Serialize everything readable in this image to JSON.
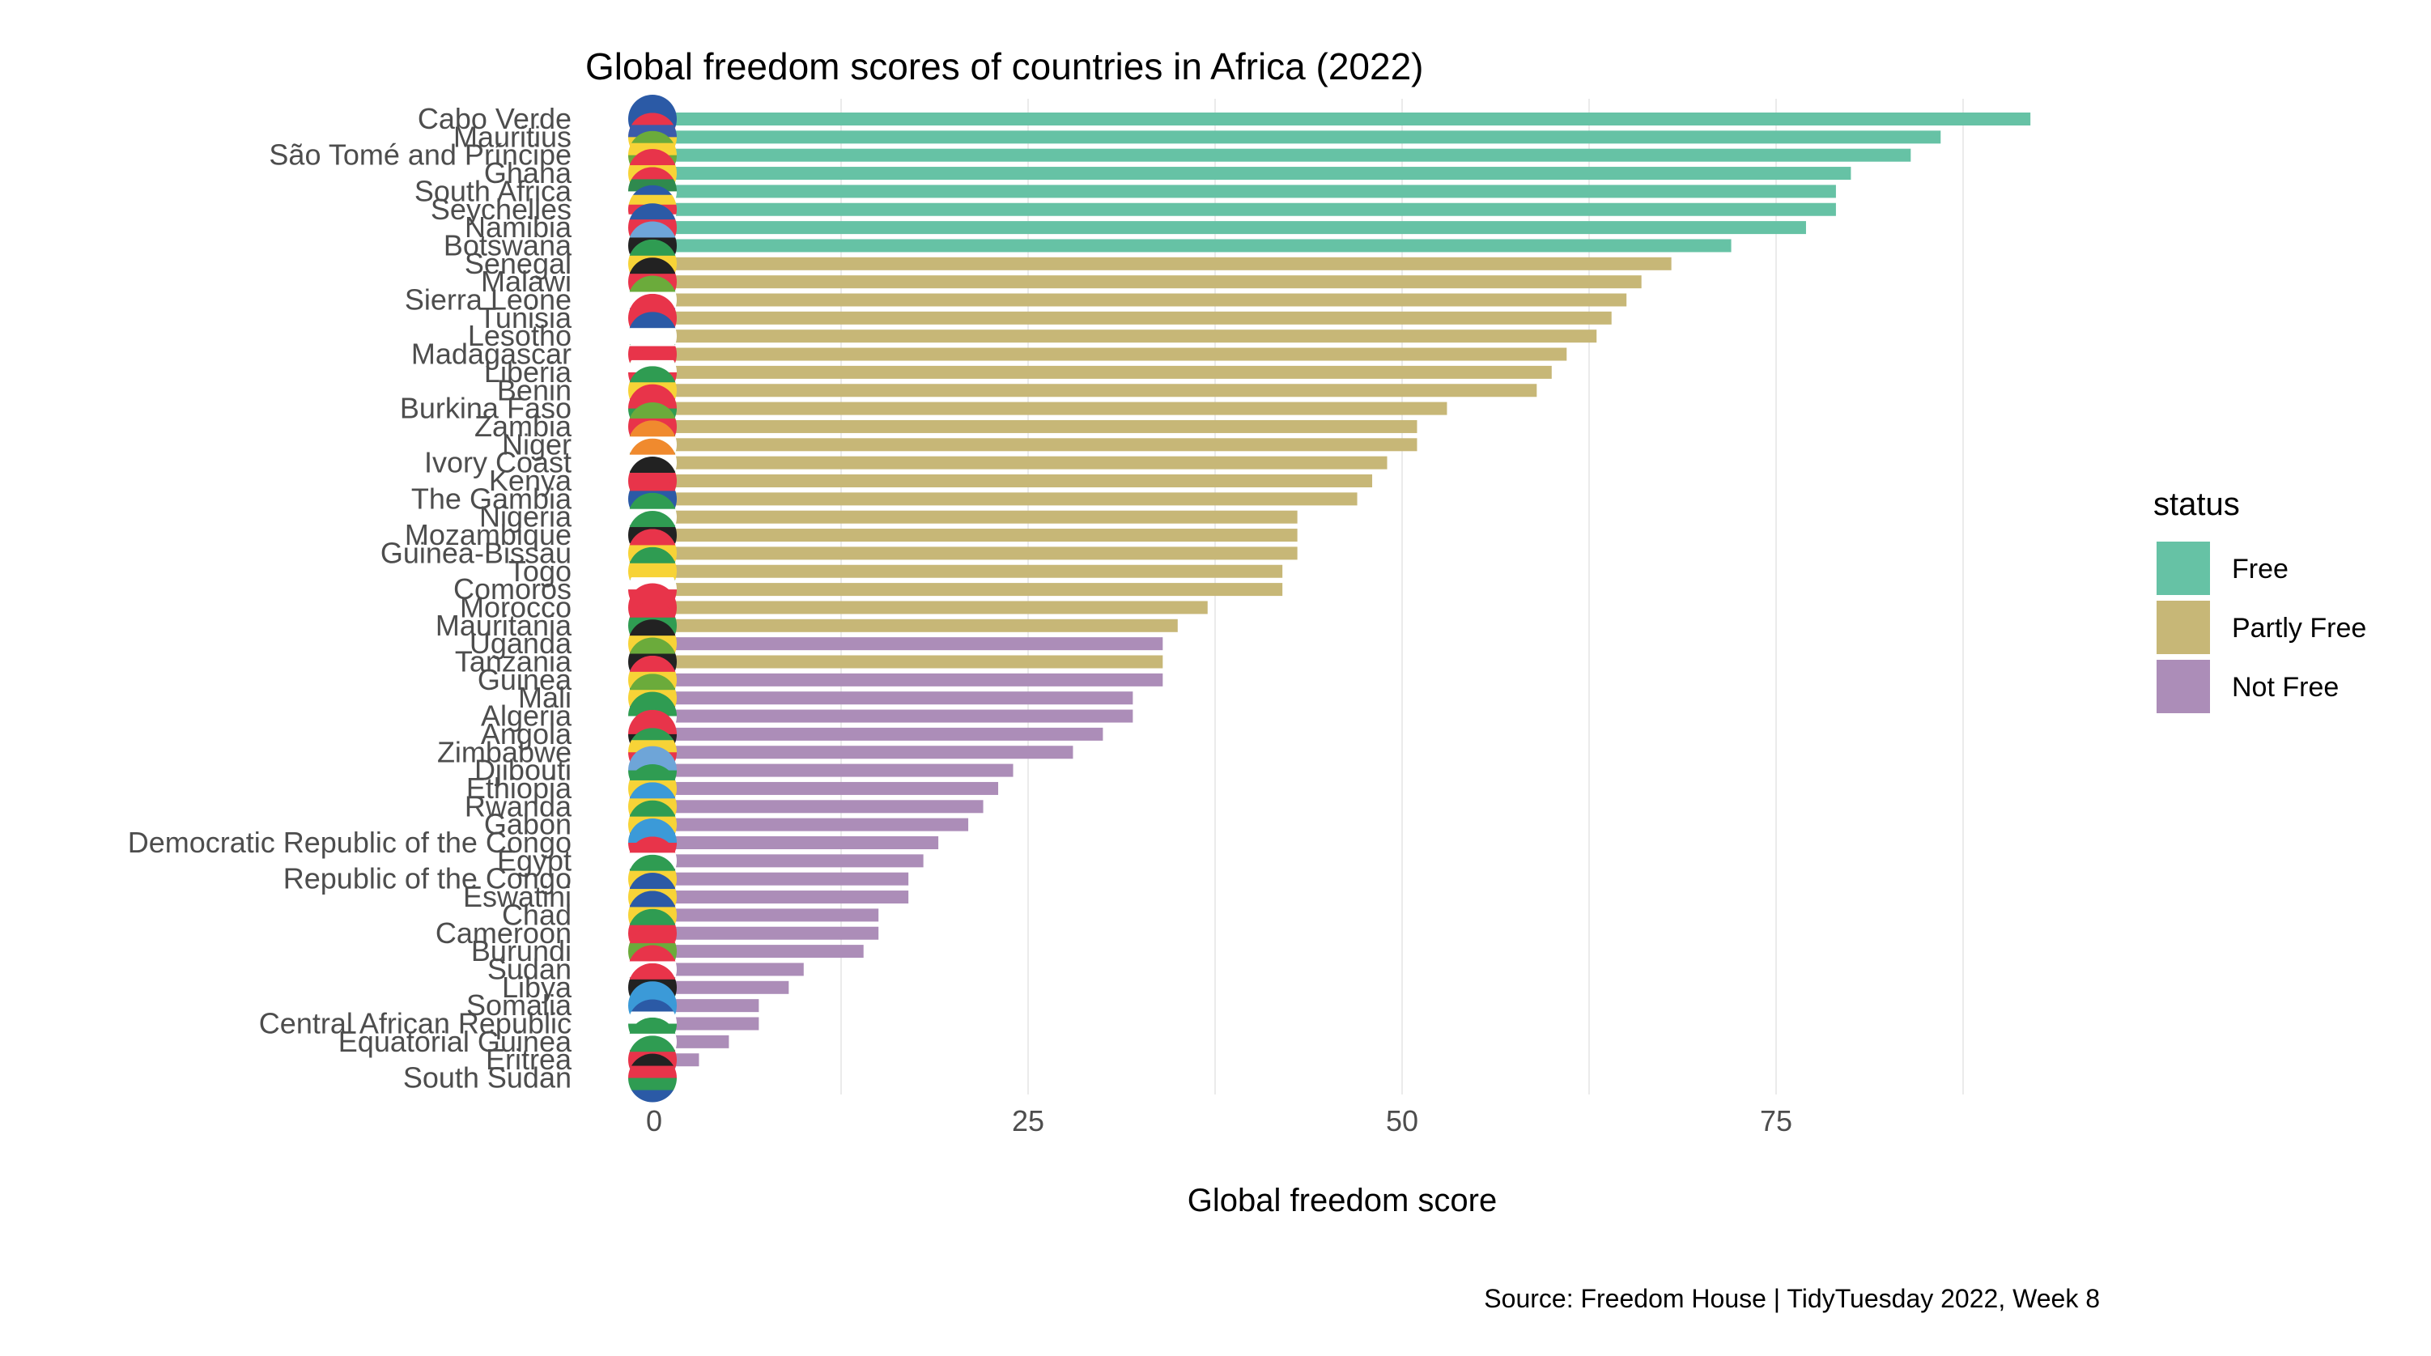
{
  "chart_data": {
    "type": "bar",
    "orientation": "horizontal",
    "title": "Global freedom scores of countries in Africa (2022)",
    "xlabel": "Global freedom score",
    "ylabel": "",
    "caption": "Source: Freedom House | TidyTuesday 2022, Week 8",
    "xlim": [
      -3,
      96
    ],
    "xticks": [
      0,
      25,
      50,
      75
    ],
    "grid": true,
    "legend": {
      "title": "status",
      "position": "right",
      "items": [
        {
          "label": "Free",
          "color": "#66C2A5"
        },
        {
          "label": "Partly Free",
          "color": "#C7B777"
        },
        {
          "label": "Not Free",
          "color": "#AC8DB8"
        }
      ]
    },
    "categories": [
      {
        "name": "Cabo Verde",
        "value": 92,
        "status": "Free",
        "flag": [
          "#2b5aa6",
          "#2b5aa6",
          "#e8344a"
        ]
      },
      {
        "name": "Mauritius",
        "value": 86,
        "status": "Free",
        "flag": [
          "#e8344a",
          "#3b5bab",
          "#f7d337",
          "#2f9c52"
        ]
      },
      {
        "name": "São Tomé and Príncipe",
        "value": 84,
        "status": "Free",
        "flag": [
          "#6bab3b",
          "#f7d337",
          "#6bab3b",
          "#e8344a"
        ]
      },
      {
        "name": "Ghana",
        "value": 80,
        "status": "Free",
        "flag": [
          "#e8344a",
          "#f7d337",
          "#6bab3b"
        ]
      },
      {
        "name": "South Africa",
        "value": 79,
        "status": "Free",
        "flag": [
          "#e8344a",
          "#2f8a4e",
          "#ffffff",
          "#2b5aa6"
        ]
      },
      {
        "name": "Seychelles",
        "value": 79,
        "status": "Free",
        "flag": [
          "#2b5aa6",
          "#f7d337",
          "#e8344a",
          "#ffffff",
          "#2f9c52"
        ]
      },
      {
        "name": "Namibia",
        "value": 77,
        "status": "Free",
        "flag": [
          "#2b5aa6",
          "#e8344a",
          "#6bab3b"
        ]
      },
      {
        "name": "Botswana",
        "value": 72,
        "status": "Free",
        "flag": [
          "#6ea5d8",
          "#222222",
          "#6ea5d8"
        ]
      },
      {
        "name": "Senegal",
        "value": 68,
        "status": "Partly Free",
        "flag": [
          "#2f9c52",
          "#f7d337",
          "#e8344a"
        ]
      },
      {
        "name": "Malawi",
        "value": 66,
        "status": "Partly Free",
        "flag": [
          "#222222",
          "#e8344a",
          "#2f9c52"
        ]
      },
      {
        "name": "Sierra Leone",
        "value": 65,
        "status": "Partly Free",
        "flag": [
          "#6bab3b",
          "#ffffff",
          "#2b5aa6"
        ]
      },
      {
        "name": "Tunisia",
        "value": 64,
        "status": "Partly Free",
        "flag": [
          "#e8344a",
          "#e8344a"
        ]
      },
      {
        "name": "Lesotho",
        "value": 63,
        "status": "Partly Free",
        "flag": [
          "#2b5aa6",
          "#ffffff",
          "#2f9c52"
        ]
      },
      {
        "name": "Madagascar",
        "value": 61,
        "status": "Partly Free",
        "flag": [
          "#ffffff",
          "#e8344a",
          "#6bab3b"
        ]
      },
      {
        "name": "Liberia",
        "value": 60,
        "status": "Partly Free",
        "flag": [
          "#e8344a",
          "#ffffff",
          "#e8344a",
          "#ffffff"
        ]
      },
      {
        "name": "Benin",
        "value": 59,
        "status": "Partly Free",
        "flag": [
          "#2f9c52",
          "#f7d337",
          "#e8344a"
        ]
      },
      {
        "name": "Burkina Faso",
        "value": 53,
        "status": "Partly Free",
        "flag": [
          "#e8344a",
          "#2f9c52"
        ]
      },
      {
        "name": "Zambia",
        "value": 51,
        "status": "Partly Free",
        "flag": [
          "#6bab3b",
          "#e8344a",
          "#222222"
        ]
      },
      {
        "name": "Niger",
        "value": 51,
        "status": "Partly Free",
        "flag": [
          "#f08a2e",
          "#ffffff",
          "#2f9c52"
        ]
      },
      {
        "name": "Ivory Coast",
        "value": 49,
        "status": "Partly Free",
        "flag": [
          "#f08a2e",
          "#ffffff",
          "#2f9c52"
        ]
      },
      {
        "name": "Kenya",
        "value": 48,
        "status": "Partly Free",
        "flag": [
          "#222222",
          "#e8344a",
          "#2f9c52"
        ]
      },
      {
        "name": "The Gambia",
        "value": 47,
        "status": "Partly Free",
        "flag": [
          "#e8344a",
          "#2b5aa6",
          "#2f9c52"
        ]
      },
      {
        "name": "Nigeria",
        "value": 43,
        "status": "Partly Free",
        "flag": [
          "#2f9c52",
          "#ffffff",
          "#2f9c52"
        ]
      },
      {
        "name": "Mozambique",
        "value": 43,
        "status": "Partly Free",
        "flag": [
          "#2f9c52",
          "#222222",
          "#f7d337"
        ]
      },
      {
        "name": "Guinea-Bissau",
        "value": 43,
        "status": "Partly Free",
        "flag": [
          "#e8344a",
          "#f7d337",
          "#2f9c52"
        ]
      },
      {
        "name": "Togo",
        "value": 42,
        "status": "Partly Free",
        "flag": [
          "#2f9c52",
          "#f7d337",
          "#2f9c52"
        ]
      },
      {
        "name": "Comoros",
        "value": 42,
        "status": "Partly Free",
        "flag": [
          "#f7d337",
          "#ffffff",
          "#e8344a",
          "#2b5aa6"
        ]
      },
      {
        "name": "Morocco",
        "value": 37,
        "status": "Partly Free",
        "flag": [
          "#e8344a",
          "#e8344a"
        ]
      },
      {
        "name": "Mauritania",
        "value": 35,
        "status": "Partly Free",
        "flag": [
          "#e8344a",
          "#2f9c52",
          "#e8344a"
        ]
      },
      {
        "name": "Uganda",
        "value": 34,
        "status": "Not Free",
        "flag": [
          "#222222",
          "#f7d337",
          "#e8344a"
        ]
      },
      {
        "name": "Tanzania",
        "value": 34,
        "status": "Partly Free",
        "flag": [
          "#6bab3b",
          "#222222",
          "#2b5aa6"
        ]
      },
      {
        "name": "Guinea",
        "value": 34,
        "status": "Not Free",
        "flag": [
          "#e8344a",
          "#f7d337",
          "#2f9c52"
        ]
      },
      {
        "name": "Mali",
        "value": 32,
        "status": "Not Free",
        "flag": [
          "#6bab3b",
          "#f7d337",
          "#e8344a"
        ]
      },
      {
        "name": "Algeria",
        "value": 32,
        "status": "Not Free",
        "flag": [
          "#2f9c52",
          "#ffffff"
        ]
      },
      {
        "name": "Angola",
        "value": 30,
        "status": "Not Free",
        "flag": [
          "#e8344a",
          "#222222"
        ]
      },
      {
        "name": "Zimbabwe",
        "value": 28,
        "status": "Not Free",
        "flag": [
          "#2f9c52",
          "#f7d337",
          "#e8344a",
          "#222222"
        ]
      },
      {
        "name": "Djibouti",
        "value": 24,
        "status": "Not Free",
        "flag": [
          "#6ea5d8",
          "#2f9c52"
        ]
      },
      {
        "name": "Ethiopia",
        "value": 23,
        "status": "Not Free",
        "flag": [
          "#2f9c52",
          "#f7d337",
          "#e8344a"
        ]
      },
      {
        "name": "Rwanda",
        "value": 22,
        "status": "Not Free",
        "flag": [
          "#3b9ad8",
          "#f7d337",
          "#2f9c52"
        ]
      },
      {
        "name": "Gabon",
        "value": 21,
        "status": "Not Free",
        "flag": [
          "#2f9c52",
          "#f7d337",
          "#3b5bab"
        ]
      },
      {
        "name": "Democratic Republic of the Congo",
        "value": 19,
        "status": "Not Free",
        "flag": [
          "#3b9ad8",
          "#e8344a"
        ]
      },
      {
        "name": "Egypt",
        "value": 18,
        "status": "Not Free",
        "flag": [
          "#e8344a",
          "#ffffff",
          "#222222"
        ]
      },
      {
        "name": "Republic of the Congo",
        "value": 17,
        "status": "Not Free",
        "flag": [
          "#2f9c52",
          "#f7d337",
          "#e8344a"
        ]
      },
      {
        "name": "Eswatini",
        "value": 17,
        "status": "Not Free",
        "flag": [
          "#2b5aa6",
          "#f7d337",
          "#e8344a"
        ]
      },
      {
        "name": "Chad",
        "value": 15,
        "status": "Not Free",
        "flag": [
          "#2b5aa6",
          "#f7d337",
          "#e8344a"
        ]
      },
      {
        "name": "Cameroon",
        "value": 15,
        "status": "Not Free",
        "flag": [
          "#2f9c52",
          "#e8344a",
          "#f7d337"
        ]
      },
      {
        "name": "Burundi",
        "value": 14,
        "status": "Not Free",
        "flag": [
          "#e8344a",
          "#6bab3b",
          "#e8344a"
        ]
      },
      {
        "name": "Sudan",
        "value": 10,
        "status": "Not Free",
        "flag": [
          "#e8344a",
          "#ffffff",
          "#222222"
        ]
      },
      {
        "name": "Libya",
        "value": 9,
        "status": "Not Free",
        "flag": [
          "#e8344a",
          "#222222",
          "#2f9c52"
        ]
      },
      {
        "name": "Somalia",
        "value": 7,
        "status": "Not Free",
        "flag": [
          "#3b9ad8",
          "#3b9ad8"
        ]
      },
      {
        "name": "Central African Republic",
        "value": 7,
        "status": "Not Free",
        "flag": [
          "#2b5aa6",
          "#ffffff",
          "#2f9c52",
          "#f7d337"
        ]
      },
      {
        "name": "Equatorial Guinea",
        "value": 5,
        "status": "Not Free",
        "flag": [
          "#2f9c52",
          "#ffffff",
          "#e8344a"
        ]
      },
      {
        "name": "Eritrea",
        "value": 3,
        "status": "Not Free",
        "flag": [
          "#2f9c52",
          "#e8344a",
          "#3b9ad8"
        ]
      },
      {
        "name": "South Sudan",
        "value": 0,
        "status": "Not Free",
        "flag": [
          "#222222",
          "#e8344a",
          "#2f9c52",
          "#2b5aa6"
        ]
      }
    ]
  }
}
